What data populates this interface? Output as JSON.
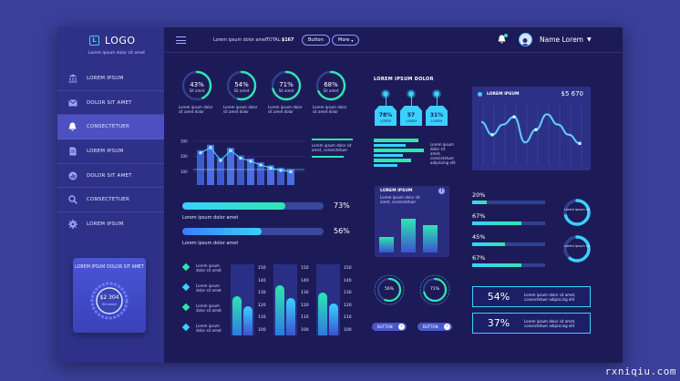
{
  "sidebar": {
    "logo": "LOGO",
    "logo_icon": "L",
    "logo_sub": "Lorem ipsum dolor sit amet",
    "items": [
      {
        "label": "LOREM IPSUM",
        "icon": "bank-icon"
      },
      {
        "label": "DOLOR SIT AMET",
        "icon": "mail-icon"
      },
      {
        "label": "CONSECTETUER",
        "icon": "bell-icon",
        "active": true
      },
      {
        "label": "LOREM IPSUM",
        "icon": "document-icon"
      },
      {
        "label": "DOLOR SIT AMET",
        "icon": "chart-icon"
      },
      {
        "label": "CONSECTETUER",
        "icon": "search-icon"
      },
      {
        "label": "LOREM IPSUM",
        "icon": "gear-icon"
      }
    ],
    "promo": {
      "title": "LOREM IPSUM DOLOR SIT AMET",
      "value": "$2 304",
      "sub": "Sit amet"
    }
  },
  "topbar": {
    "text": "Lorem ipsum dolor amet",
    "total_label": "TOTAL:",
    "total_value": "$167",
    "button": "Button",
    "more": "More",
    "user": "Name Lorem"
  },
  "rings": [
    {
      "value": "43%",
      "sub": "Sit amet",
      "pct": 0.43,
      "caption": "Lorem ipsum dolor sit amet dolor"
    },
    {
      "value": "54%",
      "sub": "Sit amet",
      "pct": 0.54,
      "caption": "Lorem ipsum dolor sit amet dolor"
    },
    {
      "value": "71%",
      "sub": "Sit amet",
      "pct": 0.71,
      "caption": "Lorem ipsum dolor sit amet dolor"
    },
    {
      "value": "68%",
      "sub": "Sit amet",
      "pct": 0.68,
      "caption": "Lorem ipsum dolor sit amet dolor"
    }
  ],
  "bar_chart": {
    "yticks": [
      "300",
      "200",
      "100"
    ],
    "values": [
      230,
      265,
      180,
      245,
      195,
      175,
      150,
      130,
      115,
      105
    ],
    "legend_text": "Lorem ipsum dolor sit amet, consectetuer"
  },
  "progress": [
    {
      "label": "Lorem ipsum dolor amet",
      "value": "73%",
      "pct": 0.73
    },
    {
      "label": "Lorem ipsum dolor amet",
      "value": "56%",
      "pct": 0.56
    }
  ],
  "list_items": [
    {
      "text": "Lorem ipsum dolor sit amet"
    },
    {
      "text": "Lorem ipsum dolor sit amet"
    },
    {
      "text": "Lorem ipsum dolor sit amet"
    },
    {
      "text": "Lorem ipsum dolor sit amet"
    }
  ],
  "column_charts": [
    {
      "ticks": [
        "150",
        "140",
        "130",
        "120",
        "110",
        "100"
      ],
      "value": 0.55
    },
    {
      "ticks": [
        "150",
        "140",
        "130",
        "120",
        "110",
        "100"
      ],
      "value": 0.7
    },
    {
      "ticks": [
        "150",
        "140",
        "130",
        "120",
        "110",
        "100"
      ],
      "value": 0.6
    }
  ],
  "pins": {
    "title": "LOREM IPSUM DOLOR",
    "items": [
      {
        "value": "78%",
        "sub": "LOREM"
      },
      {
        "value": "57",
        "sub": "LOREM"
      },
      {
        "value": "31%",
        "sub": "LOREM"
      }
    ],
    "hbars": [
      0.85,
      0.6,
      0.95,
      0.55,
      0.7,
      0.45
    ],
    "side_text": "Lorem ipsum dolor sit amet, consectetuer adipiscing elit"
  },
  "mini_card": {
    "title": "LOREM IPSUM",
    "text": "Lorem ipsum dolor sit amet, consectetuer",
    "bars": [
      0.35,
      0.75,
      0.6
    ]
  },
  "small_rings": [
    {
      "value": "56%",
      "pct": 0.56,
      "button": "BUTTON"
    },
    {
      "value": "71%",
      "pct": 0.71,
      "button": "BUTTON"
    }
  ],
  "line_chart": {
    "title": "LOREM IPSUM",
    "value": "$5 670",
    "points": [
      0.3,
      0.55,
      0.35,
      0.2,
      0.7,
      0.45,
      0.15,
      0.35,
      0.55,
      0.72
    ]
  },
  "right_bars": [
    {
      "value": "20%",
      "pct": 0.2
    },
    {
      "value": "67%",
      "pct": 0.67
    },
    {
      "value": "45%",
      "pct": 0.45
    },
    {
      "value": "67%",
      "pct": 0.67
    }
  ],
  "donuts": [
    {
      "text": "Lorem ipsum sit",
      "pct": 0.7
    },
    {
      "text": "Lorem ipsum sit",
      "pct": 0.6
    }
  ],
  "stats": [
    {
      "value": "54%",
      "text": "Lorem ipsum dolor sit amet, consectetuer adipiscing elit"
    },
    {
      "value": "37%",
      "text": "Lorem ipsum dolor sit amet, consectetuer adipiscing elit"
    }
  ],
  "watermark": "rxniqiu.com",
  "colors": {
    "accent": "#3ad0ff",
    "green": "#2ee6b0",
    "bg": "#1d1b57"
  }
}
